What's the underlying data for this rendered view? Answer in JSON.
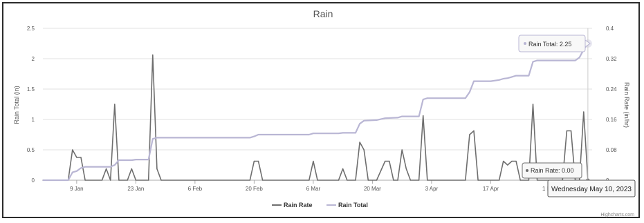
{
  "chart_data": {
    "type": "line",
    "title": "Rain",
    "y_left": {
      "label": "Rain Total (in)",
      "ticks": [
        "0",
        "0.5",
        "1",
        "1.5",
        "2",
        "2.5"
      ],
      "range": [
        0,
        2.5
      ]
    },
    "y_right": {
      "label": "Rain Rate (in/hr)",
      "ticks": [
        "0",
        "0.08",
        "0.16",
        "0.24",
        "0.32",
        "0.4"
      ],
      "range": [
        0,
        0.4
      ]
    },
    "x_axis": {
      "range": [
        "2023-01-01",
        "2023-05-11"
      ],
      "ticks": [
        {
          "label": "9 Jan",
          "date": "2023-01-09"
        },
        {
          "label": "23 Jan",
          "date": "2023-01-23"
        },
        {
          "label": "6 Feb",
          "date": "2023-02-06"
        },
        {
          "label": "20 Feb",
          "date": "2023-02-20"
        },
        {
          "label": "6 Mar",
          "date": "2023-03-06"
        },
        {
          "label": "20 Mar",
          "date": "2023-03-20"
        },
        {
          "label": "3 Apr",
          "date": "2023-04-03"
        },
        {
          "label": "17 Apr",
          "date": "2023-04-17"
        },
        {
          "label": "1 May",
          "date": "2023-05-01"
        }
      ]
    },
    "grid": true,
    "legend_position": "bottom-center",
    "series": [
      {
        "name": "Rain Rate",
        "axis": "right",
        "color": "#6e6e6e",
        "points": [
          [
            "2023-01-01",
            0
          ],
          [
            "2023-01-07",
            0
          ],
          [
            "2023-01-08",
            0.08
          ],
          [
            "2023-01-09",
            0.06
          ],
          [
            "2023-01-10",
            0.06
          ],
          [
            "2023-01-11",
            0
          ],
          [
            "2023-01-15",
            0
          ],
          [
            "2023-01-16",
            0.03
          ],
          [
            "2023-01-17",
            0
          ],
          [
            "2023-01-18",
            0.2
          ],
          [
            "2023-01-19",
            0
          ],
          [
            "2023-01-21",
            0
          ],
          [
            "2023-01-22",
            0.03
          ],
          [
            "2023-01-23",
            0
          ],
          [
            "2023-01-26",
            0
          ],
          [
            "2023-01-27",
            0.33
          ],
          [
            "2023-01-28",
            0.03
          ],
          [
            "2023-01-29",
            0
          ],
          [
            "2023-02-19",
            0
          ],
          [
            "2023-02-20",
            0.05
          ],
          [
            "2023-02-21",
            0.05
          ],
          [
            "2023-02-22",
            0
          ],
          [
            "2023-03-05",
            0
          ],
          [
            "2023-03-06",
            0.05
          ],
          [
            "2023-03-07",
            0
          ],
          [
            "2023-03-12",
            0
          ],
          [
            "2023-03-13",
            0.03
          ],
          [
            "2023-03-14",
            0
          ],
          [
            "2023-03-16",
            0
          ],
          [
            "2023-03-17",
            0.1
          ],
          [
            "2023-03-18",
            0.08
          ],
          [
            "2023-03-19",
            0
          ],
          [
            "2023-03-21",
            0
          ],
          [
            "2023-03-23",
            0.05
          ],
          [
            "2023-03-24",
            0.05
          ],
          [
            "2023-03-25",
            0
          ],
          [
            "2023-03-26",
            0
          ],
          [
            "2023-03-27",
            0.08
          ],
          [
            "2023-03-28",
            0.03
          ],
          [
            "2023-03-29",
            0
          ],
          [
            "2023-03-31",
            0
          ],
          [
            "2023-04-01",
            0.17
          ],
          [
            "2023-04-02",
            0
          ],
          [
            "2023-04-11",
            0
          ],
          [
            "2023-04-12",
            0.12
          ],
          [
            "2023-04-13",
            0.13
          ],
          [
            "2023-04-14",
            0
          ],
          [
            "2023-04-19",
            0
          ],
          [
            "2023-04-20",
            0.05
          ],
          [
            "2023-04-21",
            0.04
          ],
          [
            "2023-04-22",
            0.05
          ],
          [
            "2023-04-23",
            0.05
          ],
          [
            "2023-04-24",
            0
          ],
          [
            "2023-04-26",
            0
          ],
          [
            "2023-04-27",
            0.2
          ],
          [
            "2023-04-28",
            0
          ],
          [
            "2023-05-04",
            0
          ],
          [
            "2023-05-05",
            0.13
          ],
          [
            "2023-05-06",
            0.13
          ],
          [
            "2023-05-07",
            0
          ],
          [
            "2023-05-08",
            0
          ],
          [
            "2023-05-09",
            0.18
          ],
          [
            "2023-05-10",
            0
          ]
        ]
      },
      {
        "name": "Rain Total",
        "axis": "left",
        "color": "#b9b6d4",
        "points": [
          [
            "2023-01-01",
            0
          ],
          [
            "2023-01-07",
            0
          ],
          [
            "2023-01-08",
            0.13
          ],
          [
            "2023-01-09",
            0.15
          ],
          [
            "2023-01-10",
            0.2
          ],
          [
            "2023-01-11",
            0.22
          ],
          [
            "2023-01-17",
            0.22
          ],
          [
            "2023-01-18",
            0.25
          ],
          [
            "2023-01-19",
            0.33
          ],
          [
            "2023-01-22",
            0.33
          ],
          [
            "2023-01-23",
            0.34
          ],
          [
            "2023-01-26",
            0.34
          ],
          [
            "2023-01-27",
            0.68
          ],
          [
            "2023-01-28",
            0.7
          ],
          [
            "2023-02-19",
            0.7
          ],
          [
            "2023-02-20",
            0.72
          ],
          [
            "2023-02-21",
            0.75
          ],
          [
            "2023-03-05",
            0.75
          ],
          [
            "2023-03-06",
            0.77
          ],
          [
            "2023-03-12",
            0.77
          ],
          [
            "2023-03-13",
            0.78
          ],
          [
            "2023-03-16",
            0.78
          ],
          [
            "2023-03-17",
            0.93
          ],
          [
            "2023-03-18",
            0.98
          ],
          [
            "2023-03-21",
            0.99
          ],
          [
            "2023-03-23",
            1.02
          ],
          [
            "2023-03-26",
            1.03
          ],
          [
            "2023-03-27",
            1.05
          ],
          [
            "2023-03-31",
            1.05
          ],
          [
            "2023-04-01",
            1.33
          ],
          [
            "2023-04-02",
            1.35
          ],
          [
            "2023-04-11",
            1.35
          ],
          [
            "2023-04-12",
            1.45
          ],
          [
            "2023-04-13",
            1.63
          ],
          [
            "2023-04-17",
            1.63
          ],
          [
            "2023-04-19",
            1.65
          ],
          [
            "2023-04-20",
            1.67
          ],
          [
            "2023-04-21",
            1.68
          ],
          [
            "2023-04-22",
            1.7
          ],
          [
            "2023-04-23",
            1.72
          ],
          [
            "2023-04-26",
            1.72
          ],
          [
            "2023-04-27",
            1.95
          ],
          [
            "2023-04-28",
            1.97
          ],
          [
            "2023-05-07",
            1.97
          ],
          [
            "2023-05-08",
            2.02
          ],
          [
            "2023-05-09",
            2.15
          ],
          [
            "2023-05-10",
            2.25
          ]
        ]
      }
    ]
  },
  "tooltips": {
    "total": "Rain Total: 2.25",
    "rate": "Rain Rate: 0.00",
    "date": "Wednesday May 10, 2023"
  },
  "credits": "Highcharts.com"
}
